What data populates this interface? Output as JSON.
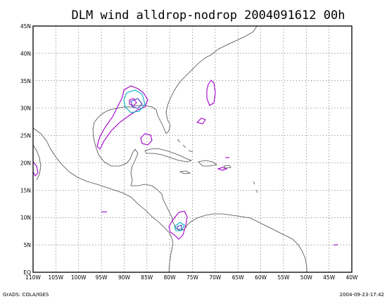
{
  "title": "DLM wind alldrop-nodrop 2004091612 00h",
  "footer_left": "GrADS: COLA/IGES",
  "footer_right": "2004-09-23-17:42",
  "map": {
    "lon_range": [
      -110,
      -40
    ],
    "lat_range": [
      0,
      45
    ],
    "lon_ticks": [
      {
        "lon": -110,
        "label": "110W"
      },
      {
        "lon": -105,
        "label": "105W"
      },
      {
        "lon": -100,
        "label": "100W"
      },
      {
        "lon": -95,
        "label": "95W"
      },
      {
        "lon": -90,
        "label": "90W"
      },
      {
        "lon": -85,
        "label": "85W"
      },
      {
        "lon": -80,
        "label": "80W"
      },
      {
        "lon": -75,
        "label": "75W"
      },
      {
        "lon": -70,
        "label": "70W"
      },
      {
        "lon": -65,
        "label": "65W"
      },
      {
        "lon": -60,
        "label": "60W"
      },
      {
        "lon": -55,
        "label": "55W"
      },
      {
        "lon": -50,
        "label": "50W"
      },
      {
        "lon": -45,
        "label": "45W"
      },
      {
        "lon": -40,
        "label": "40W"
      }
    ],
    "lat_ticks": [
      {
        "lat": 0,
        "label": "EQ"
      },
      {
        "lat": 5,
        "label": "5N"
      },
      {
        "lat": 10,
        "label": "10N"
      },
      {
        "lat": 15,
        "label": "15N"
      },
      {
        "lat": 20,
        "label": "20N"
      },
      {
        "lat": 25,
        "label": "25N"
      },
      {
        "lat": 30,
        "label": "30N"
      },
      {
        "lat": 35,
        "label": "35N"
      },
      {
        "lat": 40,
        "label": "40N"
      },
      {
        "lat": 45,
        "label": "45N"
      }
    ],
    "colors": {
      "coastline": "#4a4a4a",
      "contour_magenta": "#a000c8",
      "contour_cyan": "#00b4c8",
      "contour_blue": "#3c3cc8"
    }
  }
}
